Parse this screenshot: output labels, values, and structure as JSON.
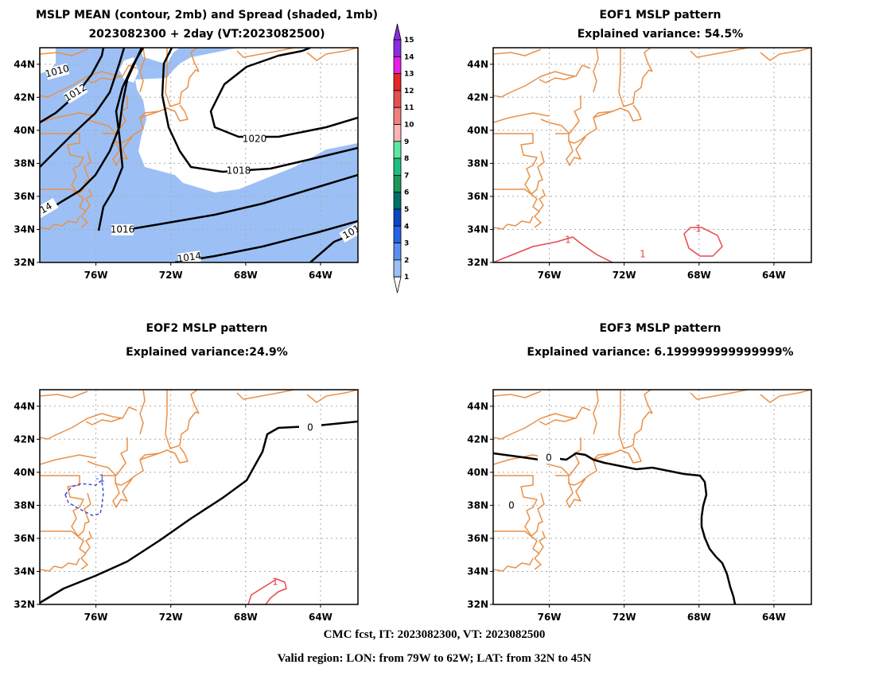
{
  "map_extent": {
    "lon": [
      -79,
      -62
    ],
    "lat": [
      32,
      45
    ]
  },
  "colors": {
    "coast": "#e8914a",
    "spread_fill": "#9cc0f5",
    "grid": "#a9a9a9",
    "contour": "#000000",
    "positive": "#e8484f",
    "negative": "#3a4fd9"
  },
  "colorbar": {
    "labels": [
      "1",
      "2",
      "3",
      "4",
      "5",
      "6",
      "7",
      "8",
      "9",
      "10",
      "11",
      "12",
      "13",
      "14",
      "15"
    ],
    "colors": [
      "#ffffff",
      "#9cc0f5",
      "#5a8ff0",
      "#2264e8",
      "#0a46c0",
      "#006e6a",
      "#1e9658",
      "#1cc07e",
      "#5ce8a0",
      "#ffb4b4",
      "#f08080",
      "#e85050",
      "#e82424",
      "#e81ee8",
      "#8a2ee0"
    ]
  },
  "footer": {
    "line1": "CMC fcst, IT: 2023082300, VT: 2023082500",
    "line2": "Valid region: LON: from 79W to 62W; LAT: from 32N to 45N"
  },
  "chart_data": [
    {
      "type": "contour-map",
      "title": "MSLP MEAN (contour, 2mb) and Spread (shaded, 1mb)",
      "subtitle": "2023082300 + 2day (VT:2023082500)",
      "x_ticks": [
        "76W",
        "72W",
        "68W",
        "64W"
      ],
      "y_ticks": [
        "44N",
        "42N",
        "40N",
        "38N",
        "36N",
        "34N",
        "32N"
      ],
      "contour_labels": [
        "1010",
        "1012",
        "14",
        "1016",
        "1014",
        "1018",
        "1020",
        "101"
      ],
      "grid": true
    },
    {
      "type": "contour-map",
      "title": "EOF1 MSLP pattern",
      "subtitle": "Explained variance: 54.5%",
      "x_ticks": [
        "76W",
        "72W",
        "68W",
        "64W"
      ],
      "y_ticks": [
        "44N",
        "42N",
        "40N",
        "38N",
        "36N",
        "34N",
        "32N"
      ],
      "contour_labels": [
        "1",
        "1",
        "1"
      ],
      "grid": true
    },
    {
      "type": "contour-map",
      "title": "EOF2 MSLP pattern",
      "subtitle": "Explained variance:24.9%",
      "x_ticks": [
        "76W",
        "72W",
        "68W",
        "64W"
      ],
      "y_ticks": [
        "44N",
        "42N",
        "40N",
        "38N",
        "36N",
        "34N",
        "32N"
      ],
      "contour_labels": [
        "0",
        "-1",
        "1"
      ],
      "grid": true
    },
    {
      "type": "contour-map",
      "title": "EOF3 MSLP pattern",
      "subtitle": "Explained variance: 6.199999999999999%",
      "x_ticks": [
        "76W",
        "72W",
        "68W",
        "64W"
      ],
      "y_ticks": [
        "44N",
        "42N",
        "40N",
        "38N",
        "36N",
        "34N",
        "32N"
      ],
      "contour_labels": [
        "0",
        "0"
      ],
      "grid": true
    }
  ]
}
